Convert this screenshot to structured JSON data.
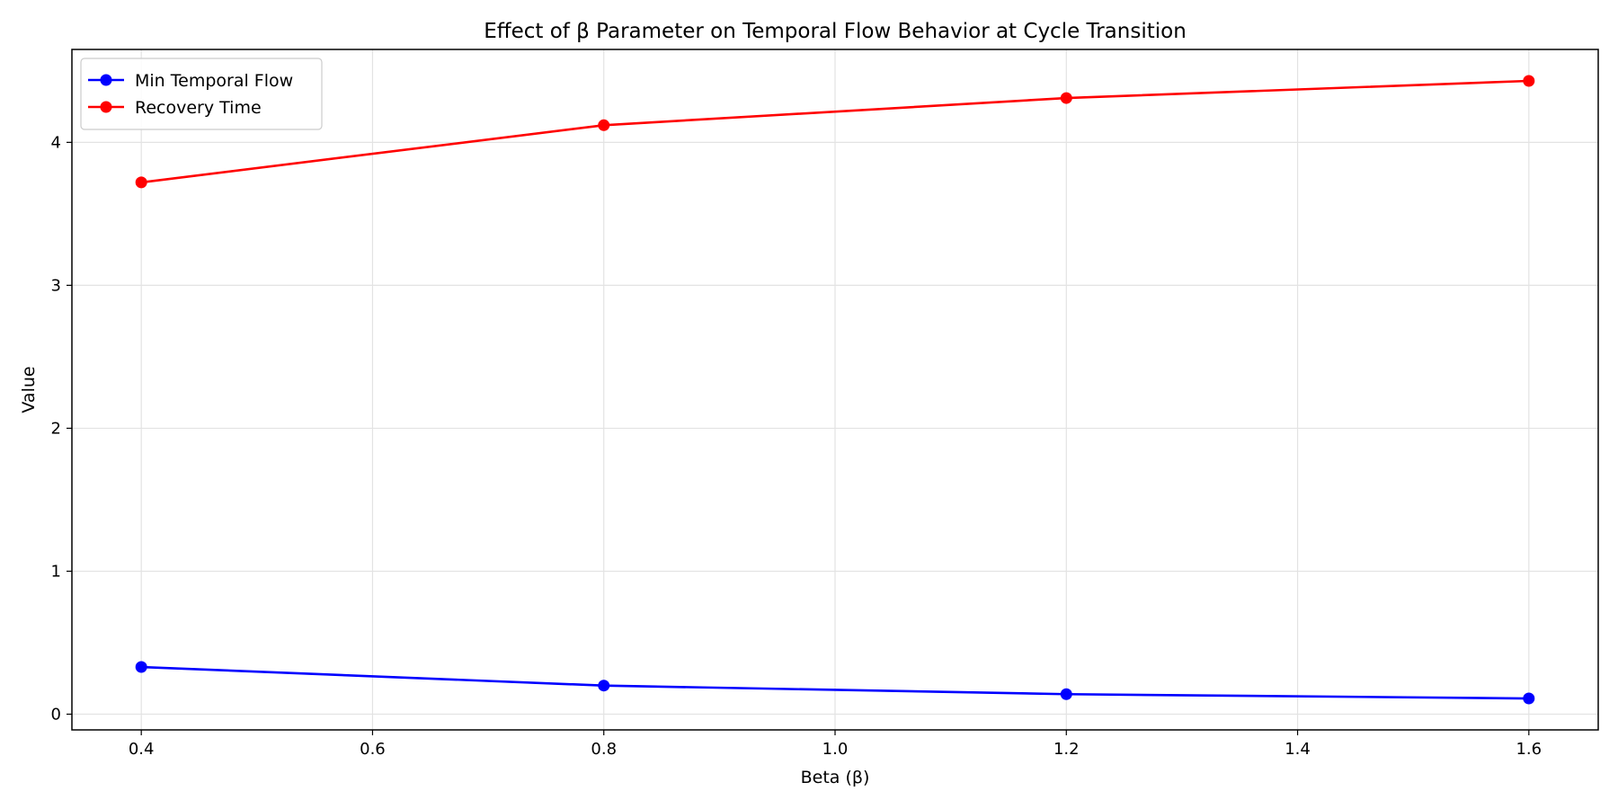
{
  "chart_data": {
    "type": "line",
    "title": "Effect of β Parameter on Temporal Flow Behavior at Cycle Transition",
    "xlabel": "Beta (β)",
    "ylabel": "Value",
    "x": [
      0.4,
      0.8,
      1.2,
      1.6
    ],
    "xlim": [
      0.34,
      1.66
    ],
    "ylim": [
      -0.11,
      4.65
    ],
    "xticks": [
      0.4,
      0.6,
      0.8,
      1.0,
      1.2,
      1.4,
      1.6
    ],
    "xtick_labels": [
      "0.4",
      "0.6",
      "0.8",
      "1.0",
      "1.2",
      "1.4",
      "1.6"
    ],
    "yticks": [
      0,
      1,
      2,
      3,
      4
    ],
    "ytick_labels": [
      "0",
      "1",
      "2",
      "3",
      "4"
    ],
    "grid": true,
    "legend_position": "top-left",
    "series": [
      {
        "name": "Min Temporal Flow",
        "color": "#0000ff",
        "marker": "circle",
        "values": [
          0.33,
          0.2,
          0.14,
          0.11
        ]
      },
      {
        "name": "Recovery Time",
        "color": "#ff0000",
        "marker": "circle",
        "values": [
          3.72,
          4.12,
          4.31,
          4.43
        ]
      }
    ]
  }
}
